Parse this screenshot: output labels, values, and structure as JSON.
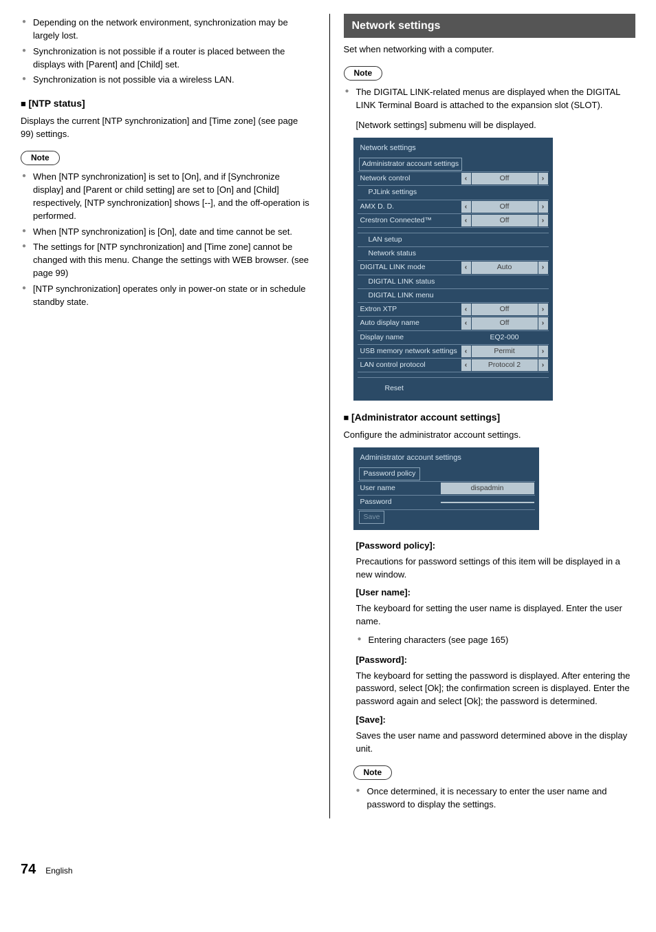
{
  "left": {
    "bullets_top": [
      "Depending on the network environment, synchronization may be largely lost.",
      "Synchronization is not possible if a router is placed between the displays with [Parent] and [Child] set.",
      "Synchronization is not possible via a wireless LAN."
    ],
    "ntp_head": "[NTP status]",
    "ntp_desc": "Displays the current [NTP synchronization] and [Time zone] (see page 99) settings.",
    "note_label": "Note",
    "ntp_notes": [
      "When [NTP synchronization] is set to [On], and if [Synchronize display] and [Parent or child setting] are set to [On] and [Child] respectively, [NTP synchronization] shows [--], and the off-operation is performed.",
      "When [NTP synchronization] is [On], date and time cannot be set.",
      "The settings for [NTP synchronization] and [Time zone] cannot be changed with this menu. Change the settings with WEB browser. (see page 99)",
      "[NTP synchronization] operates only in power-on state or in schedule standby state."
    ]
  },
  "right": {
    "banner": "Network settings",
    "intro": "Set when networking with a computer.",
    "note_label": "Note",
    "note_bullets": [
      "The DIGITAL LINK-related menus are displayed when the DIGITAL LINK Terminal Board is attached to the expansion slot (SLOT)."
    ],
    "submenu_line": "[Network settings] submenu will be displayed.",
    "menu": {
      "title": "Network settings",
      "rows": [
        {
          "type": "boxed",
          "label": "Administrator account settings"
        },
        {
          "type": "val",
          "label": "Network control",
          "value": "Off",
          "arrows": true
        },
        {
          "type": "link",
          "label": "PJLink settings",
          "indent": true
        },
        {
          "type": "val",
          "label": "AMX D. D.",
          "value": "Off",
          "arrows": true
        },
        {
          "type": "val",
          "label": "Crestron Connected™",
          "value": "Off",
          "arrows": true
        },
        {
          "type": "spacer"
        },
        {
          "type": "link",
          "label": "LAN setup",
          "indent": true
        },
        {
          "type": "link",
          "label": "Network status",
          "indent": true
        },
        {
          "type": "val",
          "label": "DIGITAL LINK mode",
          "value": "Auto",
          "arrows": true
        },
        {
          "type": "link",
          "label": "DIGITAL LINK status",
          "indent": true
        },
        {
          "type": "link",
          "label": "DIGITAL LINK menu",
          "indent": true
        },
        {
          "type": "val",
          "label": "Extron XTP",
          "value": "Off",
          "arrows": true
        },
        {
          "type": "val",
          "label": "Auto display name",
          "value": "Off",
          "arrows": true
        },
        {
          "type": "textval",
          "label": "Display name",
          "value": "EQ2-000"
        },
        {
          "type": "val",
          "label": "USB memory network settings",
          "value": "Permit",
          "arrows": true
        },
        {
          "type": "val",
          "label": "LAN control protocol",
          "value": "Protocol 2",
          "arrows": true
        },
        {
          "type": "spacer"
        },
        {
          "type": "reset",
          "label": "Reset"
        }
      ]
    },
    "admin_head": "[Administrator account settings]",
    "admin_desc": "Configure the administrator account settings.",
    "admin_panel": {
      "title": "Administrator account settings",
      "rows": [
        {
          "label": "Password policy",
          "boxed": true
        },
        {
          "label": "User name",
          "value": "dispadmin"
        },
        {
          "label": "Password",
          "value": ""
        },
        {
          "label": "Save",
          "dim": true,
          "boxed": true
        }
      ]
    },
    "fields": [
      {
        "h": "[Password policy]:",
        "p": "Precautions for password settings of this item will be displayed in a new window."
      },
      {
        "h": "[User name]:",
        "p": "The keyboard for setting the user name is displayed. Enter the user name.",
        "bul": [
          "Entering characters (see page 165)"
        ]
      },
      {
        "h": "[Password]:",
        "p": "The keyboard for setting the password is displayed. After entering the password, select [Ok]; the confirmation screen is displayed. Enter the password again and select [Ok]; the password is determined."
      },
      {
        "h": "[Save]:",
        "p": "Saves the user name and password determined above in the display unit."
      }
    ],
    "final_note_label": "Note",
    "final_note_bullets": [
      "Once determined, it is necessary to enter the user name and password to display the settings."
    ]
  },
  "footer": {
    "page": "74",
    "lang": "English"
  },
  "colors": {
    "panel_bg": "#2b4a66",
    "panel_text": "#d9e6ef",
    "value_bg": "#b9c8d2",
    "value_text": "#3c3c3c",
    "banner_bg": "#555555"
  }
}
